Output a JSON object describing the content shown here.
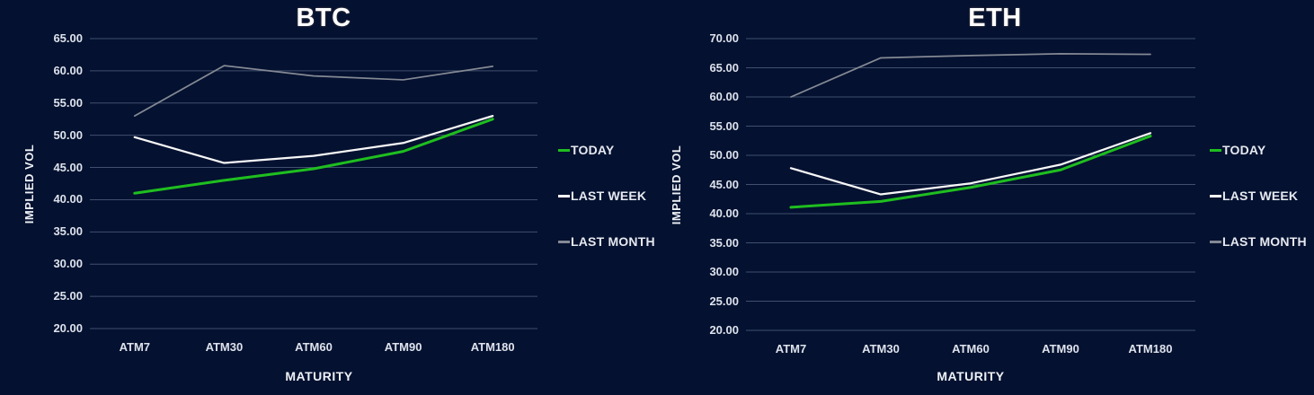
{
  "page": {
    "background_color": "#041130",
    "gridline_color": "#41506e",
    "text_color": "#dde2ec",
    "title_color": "#ffffff"
  },
  "chart_data": [
    {
      "type": "line",
      "title": "BTC",
      "xlabel": "MATURITY",
      "ylabel": "IMPLIED VOL",
      "categories": [
        "ATM7",
        "ATM30",
        "ATM60",
        "ATM90",
        "ATM180"
      ],
      "ylim": [
        20,
        65
      ],
      "y_step": 5,
      "y_tick_format": "two_decimals",
      "grid": true,
      "legend_position": "right",
      "grid_color": "#41506e",
      "series": [
        {
          "name": "TODAY",
          "color": "#1fbe1f",
          "values": [
            41.0,
            43.0,
            44.8,
            47.5,
            52.5
          ]
        },
        {
          "name": "LAST WEEK",
          "color": "#f7f7f7",
          "values": [
            49.7,
            45.7,
            46.8,
            48.8,
            53.0
          ]
        },
        {
          "name": "LAST MONTH",
          "color": "#848994",
          "values": [
            53.0,
            60.8,
            59.2,
            58.6,
            60.7
          ]
        }
      ]
    },
    {
      "type": "line",
      "title": "ETH",
      "xlabel": "MATURITY",
      "ylabel": "IMPLIED VOL",
      "categories": [
        "ATM7",
        "ATM30",
        "ATM60",
        "ATM90",
        "ATM180"
      ],
      "ylim": [
        20,
        70
      ],
      "y_step": 5,
      "y_tick_format": "two_decimals",
      "grid": true,
      "legend_position": "right",
      "grid_color": "#41506e",
      "series": [
        {
          "name": "TODAY",
          "color": "#1fbe1f",
          "values": [
            41.1,
            42.1,
            44.5,
            47.5,
            53.3
          ]
        },
        {
          "name": "LAST WEEK",
          "color": "#f7f7f7",
          "values": [
            47.8,
            43.3,
            45.2,
            48.4,
            53.8
          ]
        },
        {
          "name": "LAST MONTH",
          "color": "#848994",
          "values": [
            60.0,
            66.7,
            67.1,
            67.4,
            67.3
          ]
        }
      ]
    }
  ]
}
